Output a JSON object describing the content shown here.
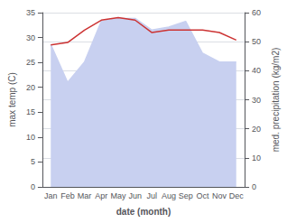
{
  "chart_data": {
    "type": "line",
    "xlabel": "date (month)",
    "ylabel": "max temp (C)",
    "y2label": "med. precipitation (kg/m2)",
    "categories": [
      "Jan",
      "Feb",
      "Mar",
      "Apr",
      "May",
      "Jun",
      "Jul",
      "Aug",
      "Sep",
      "Oct",
      "Nov",
      "Dec"
    ],
    "series": [
      {
        "type": "area",
        "axis": "y2",
        "color": "#c8d0f0",
        "values": [
          49.0,
          36.0,
          43.0,
          57.0,
          58.0,
          58.0,
          54.0,
          55.0,
          57.0,
          46.0,
          43.0,
          43.0
        ]
      },
      {
        "type": "line",
        "color": "#cc3333",
        "values": [
          28.5,
          29.0,
          31.5,
          33.5,
          34.0,
          33.5,
          31.0,
          31.5,
          31.5,
          31.5,
          31.0,
          29.5
        ]
      }
    ],
    "ylim": [
      0,
      35
    ],
    "yticks": [
      0,
      5,
      10,
      15,
      20,
      25,
      30,
      35
    ],
    "y2lim": [
      0,
      60
    ],
    "y2ticks": [
      0,
      10,
      20,
      30,
      40,
      50,
      60
    ],
    "grid": true
  }
}
